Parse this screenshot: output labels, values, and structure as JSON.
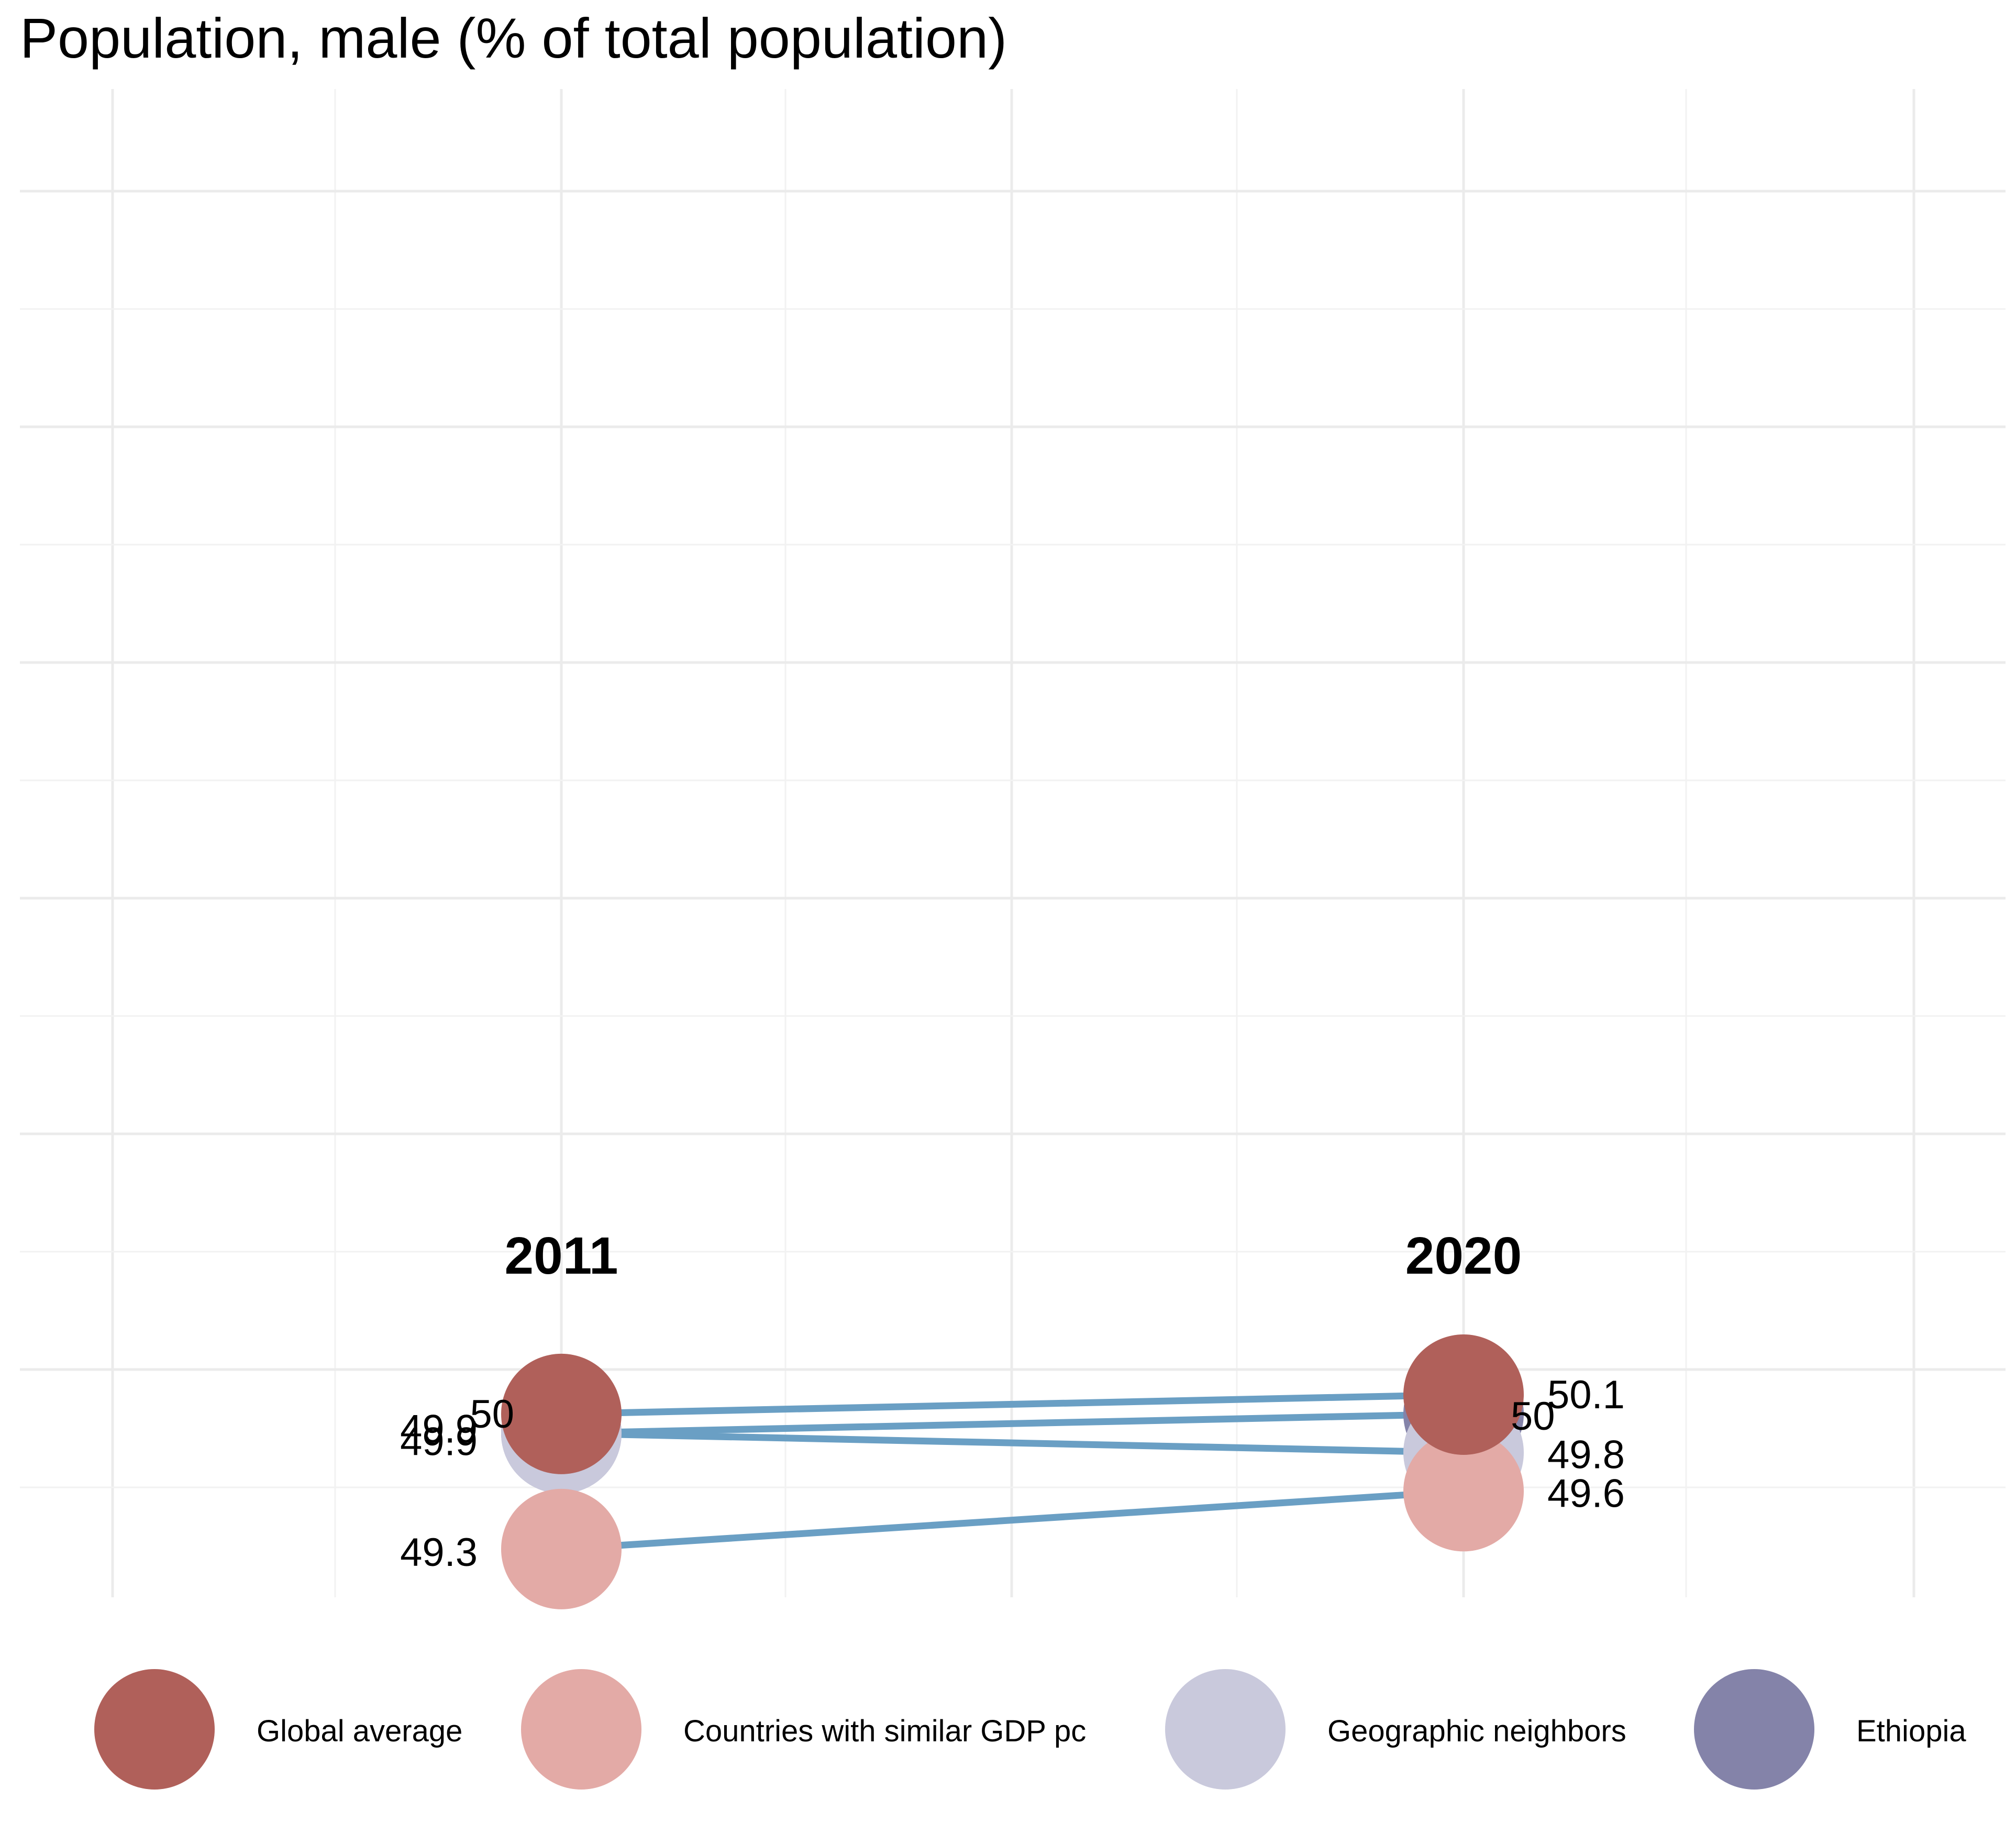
{
  "chart_data": {
    "type": "slope",
    "title": "Population, male (% of total population)",
    "x": [
      "2011",
      "2020"
    ],
    "series": [
      {
        "name": "Global average",
        "values": [
          50.0,
          50.1
        ],
        "labels": [
          "50",
          "50.1"
        ],
        "color": "#b0605a"
      },
      {
        "name": "Countries with similar GDP pc",
        "values": [
          49.3,
          49.6
        ],
        "labels": [
          "49.3",
          "49.6"
        ],
        "color": "#e3aaa6"
      },
      {
        "name": "Geographic neighbors",
        "values": [
          49.9,
          49.8
        ],
        "labels": [
          "49.9",
          "49.8"
        ],
        "color": "#c9c9dc"
      },
      {
        "name": "Ethiopia",
        "values": [
          49.9,
          50.0
        ],
        "labels": [
          "49.9",
          "50"
        ],
        "color": "#8483a9"
      }
    ],
    "line_color": "#6a9fc4",
    "grid": true,
    "legend_position": "bottom"
  }
}
